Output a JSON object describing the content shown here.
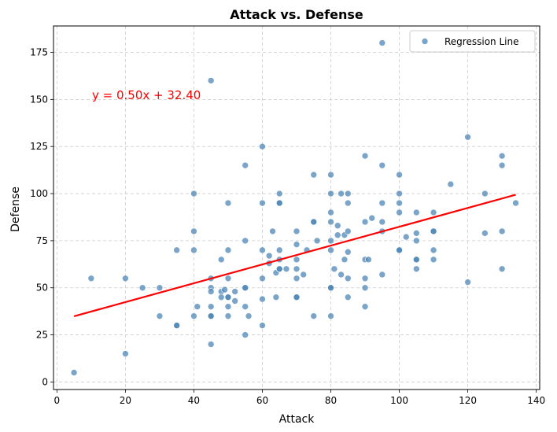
{
  "chart_data": {
    "type": "scatter",
    "title": "Attack vs. Defense",
    "xlabel": "Attack",
    "ylabel": "Defense",
    "xlim": [
      -1,
      141
    ],
    "ylim": [
      -4,
      189
    ],
    "xticks": [
      0,
      20,
      40,
      60,
      80,
      100,
      120,
      140
    ],
    "yticks": [
      0,
      25,
      50,
      75,
      100,
      125,
      150,
      175
    ],
    "grid": true,
    "legend": {
      "placement": "top-right",
      "entries": [
        "Regression Line"
      ]
    },
    "point_color": "#4682b4",
    "line_color": "#ff0000",
    "equation": {
      "text": "y = 0.50x + 32.40",
      "color": "#ff0000"
    },
    "regression": {
      "slope": 0.5,
      "intercept": 32.4,
      "x_range": [
        5,
        134
      ]
    },
    "series": [
      {
        "name": "Regression Line",
        "points": [
          [
            5,
            5
          ],
          [
            10,
            55
          ],
          [
            20,
            55
          ],
          [
            20,
            15
          ],
          [
            25,
            50
          ],
          [
            30,
            50
          ],
          [
            30,
            35
          ],
          [
            35,
            70
          ],
          [
            35,
            30
          ],
          [
            35,
            30
          ],
          [
            40,
            100
          ],
          [
            40,
            80
          ],
          [
            40,
            70
          ],
          [
            40,
            35
          ],
          [
            41,
            40
          ],
          [
            45,
            160
          ],
          [
            45,
            55
          ],
          [
            45,
            50
          ],
          [
            45,
            48
          ],
          [
            45,
            40
          ],
          [
            45,
            35
          ],
          [
            45,
            35
          ],
          [
            45,
            20
          ],
          [
            48,
            65
          ],
          [
            48,
            48
          ],
          [
            48,
            45
          ],
          [
            49,
            49
          ],
          [
            50,
            95
          ],
          [
            50,
            70
          ],
          [
            50,
            55
          ],
          [
            50,
            45
          ],
          [
            50,
            45
          ],
          [
            50,
            40
          ],
          [
            50,
            35
          ],
          [
            52,
            48
          ],
          [
            52,
            43
          ],
          [
            55,
            115
          ],
          [
            55,
            75
          ],
          [
            55,
            50
          ],
          [
            55,
            50
          ],
          [
            55,
            40
          ],
          [
            55,
            25
          ],
          [
            56,
            35
          ],
          [
            60,
            125
          ],
          [
            60,
            95
          ],
          [
            60,
            70
          ],
          [
            60,
            55
          ],
          [
            60,
            44
          ],
          [
            60,
            30
          ],
          [
            62,
            67
          ],
          [
            62,
            63
          ],
          [
            63,
            80
          ],
          [
            64,
            58
          ],
          [
            64,
            45
          ],
          [
            65,
            100
          ],
          [
            65,
            95
          ],
          [
            65,
            95
          ],
          [
            65,
            70
          ],
          [
            65,
            65
          ],
          [
            65,
            60
          ],
          [
            65,
            60
          ],
          [
            67,
            60
          ],
          [
            70,
            80
          ],
          [
            70,
            73
          ],
          [
            70,
            65
          ],
          [
            70,
            60
          ],
          [
            70,
            55
          ],
          [
            70,
            45
          ],
          [
            70,
            45
          ],
          [
            72,
            57
          ],
          [
            73,
            70
          ],
          [
            75,
            110
          ],
          [
            75,
            85
          ],
          [
            75,
            85
          ],
          [
            75,
            35
          ],
          [
            76,
            75
          ],
          [
            80,
            110
          ],
          [
            80,
            100
          ],
          [
            80,
            90
          ],
          [
            80,
            85
          ],
          [
            80,
            75
          ],
          [
            80,
            70
          ],
          [
            80,
            50
          ],
          [
            80,
            50
          ],
          [
            80,
            35
          ],
          [
            81,
            60
          ],
          [
            82,
            83
          ],
          [
            82,
            78
          ],
          [
            83,
            100
          ],
          [
            83,
            57
          ],
          [
            84,
            78
          ],
          [
            84,
            65
          ],
          [
            85,
            100
          ],
          [
            85,
            95
          ],
          [
            85,
            80
          ],
          [
            85,
            69
          ],
          [
            85,
            55
          ],
          [
            85,
            45
          ],
          [
            90,
            120
          ],
          [
            90,
            85
          ],
          [
            90,
            65
          ],
          [
            90,
            55
          ],
          [
            90,
            50
          ],
          [
            90,
            40
          ],
          [
            91,
            65
          ],
          [
            92,
            87
          ],
          [
            95,
            180
          ],
          [
            95,
            115
          ],
          [
            95,
            95
          ],
          [
            95,
            85
          ],
          [
            95,
            80
          ],
          [
            95,
            57
          ],
          [
            100,
            110
          ],
          [
            100,
            100
          ],
          [
            100,
            95
          ],
          [
            100,
            90
          ],
          [
            100,
            70
          ],
          [
            100,
            70
          ],
          [
            102,
            77
          ],
          [
            105,
            90
          ],
          [
            105,
            79
          ],
          [
            105,
            75
          ],
          [
            105,
            65
          ],
          [
            105,
            65
          ],
          [
            105,
            60
          ],
          [
            110,
            90
          ],
          [
            110,
            80
          ],
          [
            110,
            80
          ],
          [
            110,
            70
          ],
          [
            110,
            65
          ],
          [
            115,
            105
          ],
          [
            120,
            130
          ],
          [
            120,
            53
          ],
          [
            125,
            100
          ],
          [
            125,
            79
          ],
          [
            130,
            120
          ],
          [
            130,
            115
          ],
          [
            130,
            80
          ],
          [
            130,
            60
          ],
          [
            134,
            95
          ]
        ]
      }
    ]
  }
}
